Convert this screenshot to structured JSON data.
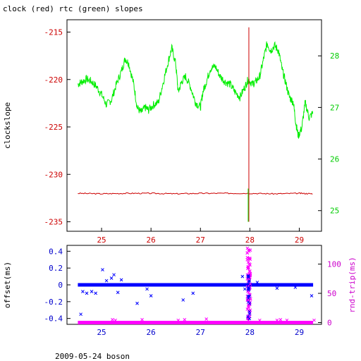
{
  "title": "clock (red) rtc (green) slopes",
  "footer": "2009-05-24 boson",
  "colors": {
    "axis": "#000000",
    "red": "#cc0000",
    "green": "#00ee00",
    "blue": "#0000ff",
    "magenta": "#ff00ff",
    "axis_red": "#cc0000",
    "axis_green": "#00cc00",
    "axis_blue": "#0000cc",
    "axis_magenta": "#cc00cc"
  },
  "chart_data": [
    {
      "type": "line",
      "x_range": [
        24.3,
        29.45
      ],
      "x_ticks": [
        "25",
        "26",
        "27",
        "28",
        "29"
      ],
      "ylabel_left": "clockslope",
      "ylim_left": [
        -236.0,
        -213.7
      ],
      "yticks_left": [
        "-215",
        "-220",
        "-225",
        "-230",
        "-235"
      ],
      "ylim_right": [
        24.6,
        28.7
      ],
      "yticks_right": [
        "28",
        "27",
        "26",
        "25"
      ],
      "series": [
        {
          "axis": "right",
          "x": [
            24.52,
            24.6,
            24.7,
            24.8,
            24.9,
            25.0,
            25.1,
            25.2,
            25.3,
            25.4,
            25.48,
            25.55,
            25.65,
            25.72,
            25.8,
            25.88,
            25.95,
            26.05,
            26.15,
            26.25,
            26.35,
            26.42,
            26.5,
            26.55,
            26.62,
            26.7,
            26.8,
            26.9,
            27.0,
            27.05,
            27.12,
            27.2,
            27.3,
            27.4,
            27.5,
            27.6,
            27.7,
            27.8,
            27.9,
            27.97,
            28.05,
            28.12,
            28.2,
            28.28,
            28.35,
            28.42,
            28.5,
            28.58,
            28.65,
            28.72,
            28.8,
            28.88,
            28.93,
            28.98,
            29.05,
            29.12,
            29.2,
            29.28
          ],
          "values": [
            27.45,
            27.5,
            27.55,
            27.5,
            27.4,
            27.25,
            27.05,
            27.15,
            27.45,
            27.7,
            27.95,
            27.85,
            27.45,
            27.0,
            26.9,
            27.0,
            26.95,
            27.05,
            27.1,
            27.5,
            27.9,
            28.15,
            27.85,
            27.3,
            27.5,
            27.6,
            27.4,
            27.1,
            27.0,
            27.3,
            27.5,
            27.75,
            27.8,
            27.6,
            27.5,
            27.45,
            27.3,
            27.2,
            27.4,
            27.55,
            27.45,
            27.5,
            27.6,
            27.95,
            28.25,
            28.1,
            28.2,
            28.1,
            27.75,
            27.5,
            27.2,
            27.1,
            26.7,
            26.45,
            26.6,
            27.1,
            26.8,
            26.9
          ]
        },
        {
          "axis": "left",
          "x": [
            24.52,
            25.0,
            25.5,
            26.0,
            26.5,
            27.0,
            27.5,
            28.0,
            28.5,
            29.0,
            29.28
          ],
          "values": [
            -232.0,
            -232.05,
            -232.0,
            -232.0,
            -232.05,
            -232.0,
            -232.0,
            -232.0,
            -232.05,
            -232.0,
            -232.05
          ]
        }
      ],
      "vertical_spike": {
        "x": 27.98,
        "from": -214.5,
        "to": -235.0,
        "green_from": -231.5,
        "green_to": -235.0
      }
    },
    {
      "type": "scatter",
      "x_range": [
        24.3,
        29.45
      ],
      "x_ticks": [
        "25",
        "26",
        "27",
        "28",
        "29"
      ],
      "ylabel_left": "offset(ms)",
      "ylim_left": [
        -0.47,
        0.47
      ],
      "yticks_left": [
        "0.4",
        "0.2",
        "0",
        "-0.2",
        "-0.4"
      ],
      "ylabel_right": "rnd-trip(ms)",
      "ylim_right": [
        -3,
        132
      ],
      "yticks_right": [
        "100",
        "50",
        "0"
      ],
      "series": [
        {
          "axis": "left",
          "baseline": 0.0,
          "outliers_x": [
            24.62,
            24.7,
            24.8,
            24.88,
            25.02,
            25.1,
            25.2,
            25.25,
            25.33,
            25.4,
            25.72,
            25.92,
            26.0,
            26.65,
            26.85,
            27.85,
            27.9,
            28.15,
            28.55,
            28.92,
            29.25,
            24.58
          ],
          "outliers_y": [
            -0.08,
            -0.1,
            -0.08,
            -0.1,
            0.18,
            0.05,
            0.08,
            0.12,
            -0.09,
            0.06,
            -0.22,
            -0.05,
            -0.13,
            -0.18,
            -0.1,
            0.1,
            -0.05,
            0.03,
            -0.04,
            -0.03,
            -0.13,
            -0.35
          ]
        },
        {
          "axis": "right",
          "baseline": 0.0,
          "outliers_x": [
            25.22,
            25.28,
            25.82,
            26.55,
            26.68,
            27.12,
            28.2,
            28.55,
            28.62,
            28.75,
            29.3
          ],
          "outliers_y": [
            5,
            4,
            5,
            4,
            5,
            6,
            4,
            4,
            5,
            4,
            4
          ],
          "spike_x": 27.98,
          "spike_range": [
            2,
            128
          ]
        }
      ]
    }
  ]
}
